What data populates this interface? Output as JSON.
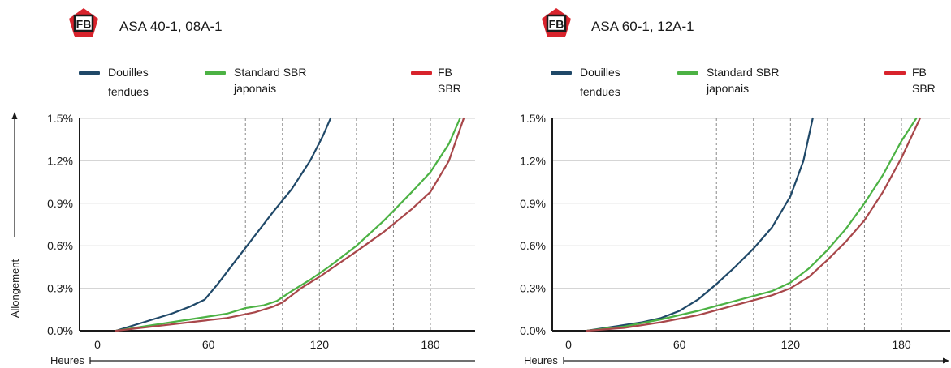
{
  "colors": {
    "douilles": "#1f4868",
    "standard": "#4cb244",
    "fb": "#d8232c",
    "fb_line": "#a8474a",
    "logo_red": "#d8232c"
  },
  "y_axis_label": "Allongement",
  "x_axis_label": "Heures",
  "logo_text": "FB",
  "legend": [
    {
      "name": "Douilles fendues",
      "lines": [
        "Douilles",
        "fendues"
      ],
      "color": "#1f4868"
    },
    {
      "name": "Standard SBR japonais",
      "lines": [
        "Standard SBR",
        "japonais"
      ],
      "color": "#4cb244"
    },
    {
      "name": "FB SBR",
      "lines": [
        "FB",
        "SBR"
      ],
      "color": "#d8232c"
    }
  ],
  "chart_data": [
    {
      "type": "line",
      "title": "ASA 40-1, 08A-1",
      "xlabel": "Heures",
      "ylabel": "Allongement",
      "xlim": [
        0,
        200
      ],
      "ylim": [
        0,
        1.5
      ],
      "xticks": [
        "0",
        "60",
        "120",
        "180"
      ],
      "yticks": [
        "0.0%",
        "0.3%",
        "0.6%",
        "0.9%",
        "1.2%",
        "1.5%"
      ],
      "grid_x_dashed": [
        80,
        100,
        120,
        140,
        160,
        180
      ],
      "series": [
        {
          "name": "Douilles fendues",
          "color": "#1f4868",
          "x": [
            10,
            20,
            30,
            40,
            50,
            58,
            65,
            75,
            85,
            95,
            105,
            115,
            122,
            126
          ],
          "y": [
            0.0,
            0.04,
            0.08,
            0.12,
            0.17,
            0.22,
            0.33,
            0.5,
            0.67,
            0.84,
            1.0,
            1.2,
            1.38,
            1.5
          ]
        },
        {
          "name": "Standard SBR japonais",
          "color": "#4cb244",
          "x": [
            10,
            30,
            50,
            70,
            80,
            90,
            97,
            105,
            115,
            125,
            140,
            155,
            170,
            180,
            190,
            196
          ],
          "y": [
            0.0,
            0.04,
            0.08,
            0.12,
            0.16,
            0.18,
            0.21,
            0.28,
            0.36,
            0.45,
            0.6,
            0.78,
            0.98,
            1.12,
            1.32,
            1.5
          ]
        },
        {
          "name": "FB SBR",
          "color": "#a8474a",
          "x": [
            10,
            30,
            50,
            70,
            85,
            95,
            100,
            110,
            120,
            130,
            140,
            155,
            170,
            180,
            190,
            198
          ],
          "y": [
            0.0,
            0.03,
            0.06,
            0.09,
            0.13,
            0.17,
            0.2,
            0.3,
            0.38,
            0.47,
            0.56,
            0.7,
            0.86,
            0.98,
            1.2,
            1.5
          ]
        }
      ]
    },
    {
      "type": "line",
      "title": "ASA 60-1, 12A-1",
      "xlabel": "Heures",
      "ylabel": "Allongement",
      "xlim": [
        0,
        200
      ],
      "ylim": [
        0,
        1.5
      ],
      "xticks": [
        "0",
        "60",
        "120",
        "180"
      ],
      "yticks": [
        "0.0%",
        "0.3%",
        "0.6%",
        "0.9%",
        "1.2%",
        "1.5%"
      ],
      "grid_x_dashed": [
        80,
        100,
        120,
        140,
        160,
        180
      ],
      "series": [
        {
          "name": "Douilles fendues",
          "color": "#1f4868",
          "x": [
            10,
            20,
            30,
            40,
            50,
            60,
            70,
            80,
            90,
            100,
            110,
            120,
            127,
            132
          ],
          "y": [
            0.0,
            0.02,
            0.04,
            0.06,
            0.09,
            0.14,
            0.22,
            0.33,
            0.45,
            0.58,
            0.73,
            0.95,
            1.2,
            1.5
          ]
        },
        {
          "name": "Standard SBR japonais",
          "color": "#4cb244",
          "x": [
            10,
            30,
            50,
            70,
            90,
            110,
            120,
            130,
            140,
            150,
            160,
            170,
            180,
            188
          ],
          "y": [
            0.0,
            0.03,
            0.08,
            0.14,
            0.21,
            0.28,
            0.34,
            0.44,
            0.57,
            0.72,
            0.9,
            1.1,
            1.34,
            1.5
          ]
        },
        {
          "name": "FB SBR",
          "color": "#a8474a",
          "x": [
            10,
            30,
            50,
            70,
            90,
            110,
            120,
            130,
            140,
            150,
            160,
            170,
            180,
            190
          ],
          "y": [
            0.0,
            0.02,
            0.06,
            0.11,
            0.18,
            0.25,
            0.3,
            0.38,
            0.5,
            0.63,
            0.78,
            0.98,
            1.22,
            1.5
          ]
        }
      ]
    }
  ]
}
